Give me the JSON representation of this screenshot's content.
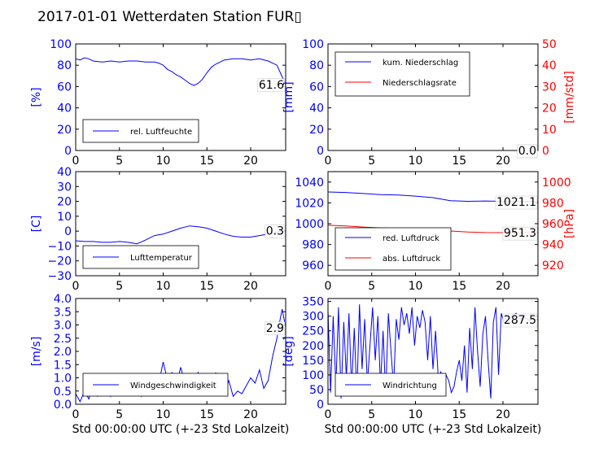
{
  "title": "2017-01-01 Wetterdaten Station FUR▯",
  "colors": {
    "left_axis": "#0000ff",
    "right_axis": "#ff0000",
    "text": "#000000"
  },
  "chart_data": [
    {
      "id": "humidity",
      "type": "line",
      "xlim": [
        0,
        24
      ],
      "ylim": [
        0,
        100
      ],
      "xticks": [
        "0",
        "5",
        "10",
        "15",
        "20"
      ],
      "xtick_values": [
        0,
        5,
        10,
        15,
        20
      ],
      "yticks": [
        "0",
        "20",
        "40",
        "60",
        "80",
        "100"
      ],
      "ytick_values": [
        0,
        20,
        40,
        60,
        80,
        100
      ],
      "ylabel": "[%]",
      "legend_position": "lower-left",
      "last_value_label": "61.6",
      "series": [
        {
          "name": "rel. Luftfeuchte",
          "color": "#0000ff",
          "x": [
            0,
            0.5,
            1,
            1.5,
            2,
            3,
            4,
            5,
            6,
            7,
            8,
            9,
            9.5,
            10,
            10.5,
            11,
            11.5,
            12,
            12.5,
            13,
            13.5,
            14,
            14.5,
            15,
            15.5,
            16,
            16.5,
            17,
            18,
            19,
            20,
            21,
            22,
            22.5,
            23,
            23.5,
            24
          ],
          "y": [
            86,
            85,
            87,
            86,
            84,
            83,
            84,
            83,
            84,
            84,
            83,
            83,
            82,
            80,
            76,
            74,
            71,
            69,
            66,
            63,
            61,
            63,
            67,
            73,
            78,
            81,
            83,
            85,
            86,
            86,
            85,
            86,
            84,
            82,
            80,
            71,
            62
          ]
        }
      ]
    },
    {
      "id": "precip",
      "type": "line",
      "xlim": [
        0,
        24
      ],
      "ylim": [
        0,
        100
      ],
      "xticks": [
        "0",
        "5",
        "10",
        "15",
        "20"
      ],
      "xtick_values": [
        0,
        5,
        10,
        15,
        20
      ],
      "yticks": [
        "0",
        "20",
        "40",
        "60",
        "80",
        "100"
      ],
      "ytick_values": [
        0,
        20,
        40,
        60,
        80,
        100
      ],
      "ylabel": "[mm]",
      "y2lim": [
        0,
        50
      ],
      "y2ticks": [
        "0",
        "10",
        "20",
        "30",
        "40",
        "50"
      ],
      "y2tick_values": [
        0,
        10,
        20,
        30,
        40,
        50
      ],
      "y2label": "[mm/std]",
      "legend_position": "upper-left",
      "last_value_label": "0.0",
      "last_value_label2": "0.0",
      "series": [
        {
          "name": "kum. Niederschlag",
          "color": "#0000ff",
          "axis": "left",
          "x": [
            0,
            24
          ],
          "y": [
            0,
            0
          ]
        },
        {
          "name": "Niederschlagsrate",
          "color": "#ff0000",
          "axis": "right",
          "x": [
            0,
            24
          ],
          "y": [
            0,
            0
          ]
        }
      ]
    },
    {
      "id": "temperature",
      "type": "line",
      "xlim": [
        0,
        24
      ],
      "ylim": [
        -30,
        40
      ],
      "xticks": [
        "0",
        "5",
        "10",
        "15",
        "20"
      ],
      "xtick_values": [
        0,
        5,
        10,
        15,
        20
      ],
      "yticks": [
        "−30",
        "−20",
        "−10",
        "0",
        "10",
        "20",
        "30",
        "40"
      ],
      "ytick_values": [
        -30,
        -20,
        -10,
        0,
        10,
        20,
        30,
        40
      ],
      "ylabel": "[C]",
      "legend_position": "lower-left",
      "last_value_label": "0.3",
      "series": [
        {
          "name": "Lufttemperatur",
          "color": "#0000ff",
          "x": [
            0,
            1,
            2,
            3,
            4,
            5,
            6,
            7,
            8,
            9,
            10,
            11,
            12,
            13,
            14,
            15,
            16,
            17,
            18,
            19,
            20,
            21,
            22,
            23,
            23.5,
            24
          ],
          "y": [
            -6.5,
            -7,
            -7,
            -7.5,
            -7.5,
            -7,
            -7.5,
            -8.5,
            -6,
            -3,
            -2,
            0,
            2,
            3.5,
            3,
            2,
            0,
            -2,
            -3.5,
            -4,
            -4,
            -3,
            -2,
            -1,
            0,
            0.3
          ]
        }
      ]
    },
    {
      "id": "pressure",
      "type": "line",
      "xlim": [
        0,
        24
      ],
      "ylim": [
        950,
        1050
      ],
      "xticks": [
        "0",
        "5",
        "10",
        "15",
        "20"
      ],
      "xtick_values": [
        0,
        5,
        10,
        15,
        20
      ],
      "yticks": [
        "960",
        "980",
        "1000",
        "1020",
        "1040"
      ],
      "ytick_values": [
        960,
        980,
        1000,
        1020,
        1040
      ],
      "y2lim": [
        910,
        1010
      ],
      "y2ticks": [
        "920",
        "940",
        "960",
        "980",
        "1000"
      ],
      "y2tick_values": [
        920,
        940,
        960,
        980,
        1000
      ],
      "y2label": "[hPa]",
      "legend_position": "lower-left",
      "last_value_label": "1021.1",
      "last_value_label2": "951.3",
      "series": [
        {
          "name": "red. Luftdruck",
          "color": "#0000ff",
          "axis": "left",
          "x": [
            0,
            2,
            4,
            6,
            8,
            10,
            12,
            14,
            16,
            18,
            20,
            22,
            24
          ],
          "y": [
            1030.5,
            1030,
            1029,
            1028,
            1027.5,
            1026.5,
            1025,
            1022,
            1021.5,
            1021.8,
            1021.5,
            1021.3,
            1021.1
          ]
        },
        {
          "name": "abs. Luftdruck",
          "color": "#ff0000",
          "axis": "right",
          "x": [
            0,
            2,
            4,
            6,
            8,
            10,
            12,
            14,
            16,
            18,
            20,
            22,
            24
          ],
          "y": [
            958.5,
            957.8,
            956.8,
            956,
            955.5,
            955,
            954.5,
            953,
            952,
            951.5,
            951.4,
            951.3,
            951.3
          ]
        }
      ]
    },
    {
      "id": "windspeed",
      "type": "line",
      "xlim": [
        0,
        24
      ],
      "ylim": [
        0,
        4
      ],
      "xticks": [
        "0",
        "5",
        "10",
        "15",
        "20"
      ],
      "xtick_values": [
        0,
        5,
        10,
        15,
        20
      ],
      "yticks": [
        "0.0",
        "0.5",
        "1.0",
        "1.5",
        "2.0",
        "2.5",
        "3.0",
        "3.5",
        "4.0"
      ],
      "ytick_values": [
        0,
        0.5,
        1,
        1.5,
        2,
        2.5,
        3,
        3.5,
        4
      ],
      "ylabel": "[m/s]",
      "xlabel": "Std 00:00:00 UTC (+-23 Std Lokalzeit)",
      "legend_position": "lower-left",
      "last_value_label": "2.9",
      "series": [
        {
          "name": "Windgeschwindigkeit",
          "color": "#0000ff",
          "x": [
            0,
            0.5,
            1,
            1.5,
            2,
            2.5,
            3,
            3.5,
            4,
            4.5,
            5,
            5.5,
            6,
            6.5,
            7,
            7.5,
            8,
            8.5,
            9,
            9.5,
            10,
            10.5,
            11,
            11.5,
            12,
            12.5,
            13,
            13.5,
            14,
            14.5,
            15,
            15.5,
            16,
            16.5,
            17,
            17.5,
            18,
            18.5,
            19,
            19.5,
            20,
            20.5,
            21,
            21.5,
            22,
            22.5,
            23,
            23.3,
            23.6,
            24
          ],
          "y": [
            0.4,
            0.1,
            0.5,
            0.2,
            0.7,
            0.3,
            0.5,
            0.9,
            0.3,
            0.8,
            0.4,
            1.0,
            0.5,
            0.9,
            0.6,
            0.3,
            0.7,
            0.5,
            1.0,
            0.8,
            1.6,
            0.9,
            1.2,
            0.7,
            1.4,
            0.8,
            1.1,
            0.6,
            1.2,
            0.7,
            1.0,
            0.5,
            1.2,
            0.6,
            0.4,
            0.9,
            0.3,
            0.5,
            0.4,
            0.7,
            1.0,
            0.8,
            1.3,
            0.6,
            0.9,
            1.8,
            2.5,
            3.1,
            3.6,
            2.9
          ]
        }
      ]
    },
    {
      "id": "winddir",
      "type": "line",
      "xlim": [
        0,
        24
      ],
      "ylim": [
        0,
        360
      ],
      "xticks": [
        "0",
        "5",
        "10",
        "15",
        "20"
      ],
      "xtick_values": [
        0,
        5,
        10,
        15,
        20
      ],
      "yticks": [
        "0",
        "50",
        "100",
        "150",
        "200",
        "250",
        "300",
        "350"
      ],
      "ytick_values": [
        0,
        50,
        100,
        150,
        200,
        250,
        300,
        350
      ],
      "ylabel": "[deg]",
      "xlabel": "Std 00:00:00 UTC (+-23 Std Lokalzeit)",
      "legend_position": "lower-left",
      "last_value_label": "287.5",
      "series": [
        {
          "name": "Windrichtung",
          "color": "#0000ff",
          "x": [
            0,
            0.3,
            0.6,
            0.9,
            1.2,
            1.5,
            1.8,
            2.1,
            2.4,
            2.7,
            3,
            3.3,
            3.6,
            3.9,
            4.2,
            4.5,
            4.8,
            5.1,
            5.4,
            5.7,
            6,
            6.3,
            6.6,
            6.9,
            7.2,
            7.5,
            7.8,
            8.1,
            8.4,
            8.7,
            9,
            9.3,
            9.6,
            9.9,
            10.2,
            10.5,
            10.8,
            11.1,
            11.4,
            11.7,
            12,
            12.3,
            12.6,
            12.9,
            13.2,
            13.5,
            13.8,
            14.1,
            14.4,
            14.7,
            15,
            15.3,
            15.6,
            15.9,
            16.2,
            16.5,
            16.8,
            17.1,
            17.4,
            17.7,
            18,
            18.3,
            18.6,
            18.9,
            19.2,
            19.5,
            19.8,
            20.1,
            20.4,
            20.7,
            21,
            21.5,
            22,
            22.5,
            23,
            23.5,
            24
          ],
          "y": [
            320,
            40,
            300,
            60,
            330,
            20,
            280,
            90,
            310,
            50,
            260,
            30,
            340,
            120,
            290,
            70,
            200,
            330,
            150,
            300,
            60,
            250,
            30,
            310,
            180,
            60,
            290,
            220,
            330,
            270,
            310,
            240,
            330,
            200,
            300,
            260,
            320,
            280,
            150,
            300,
            120,
            250,
            90,
            110,
            70,
            100,
            80,
            40,
            60,
            110,
            150,
            80,
            200,
            40,
            260,
            120,
            330,
            180,
            60,
            240,
            300,
            150,
            20,
            280,
            330,
            100,
            310,
            280,
            300,
            290,
            300,
            310,
            290,
            295,
            285,
            290,
            288
          ]
        }
      ]
    }
  ]
}
